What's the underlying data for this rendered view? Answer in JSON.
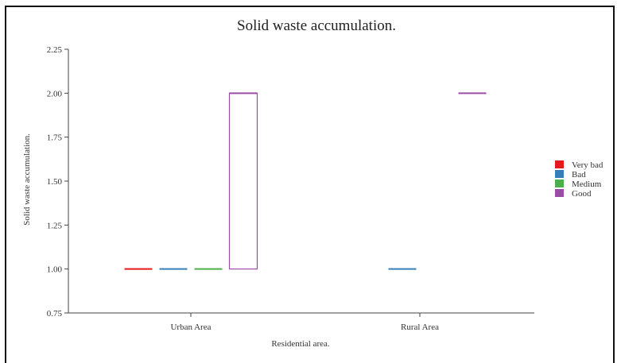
{
  "chart_data": {
    "type": "box",
    "title": "Solid waste accumulation.",
    "xlabel": "Residential area.",
    "ylabel": "Solid waste accumulation.",
    "ylim": [
      0.75,
      2.25
    ],
    "yticks": [
      "0.75",
      "1.00",
      "1.25",
      "1.50",
      "1.75",
      "2.00",
      "2.25"
    ],
    "categories": [
      "Urban Area",
      "Rural Area"
    ],
    "legend_position": "right",
    "grid": false,
    "series": [
      {
        "name": "Very bad",
        "color": "#e41a1c",
        "boxes": [
          {
            "category": "Urban Area",
            "low": 1.0,
            "high": 1.0
          }
        ]
      },
      {
        "name": "Bad",
        "color": "#377eb8",
        "boxes": [
          {
            "category": "Urban Area",
            "low": 1.0,
            "high": 1.0
          },
          {
            "category": "Rural Area",
            "low": 1.0,
            "high": 1.0
          }
        ]
      },
      {
        "name": "Medium",
        "color": "#4daf4a",
        "boxes": [
          {
            "category": "Urban Area",
            "low": 1.0,
            "high": 1.0
          }
        ]
      },
      {
        "name": "Good",
        "color": "#984ea3",
        "boxes": [
          {
            "category": "Urban Area",
            "low": 1.0,
            "high": 2.0
          },
          {
            "category": "Rural Area",
            "low": 2.0,
            "high": 2.0
          }
        ]
      }
    ]
  }
}
